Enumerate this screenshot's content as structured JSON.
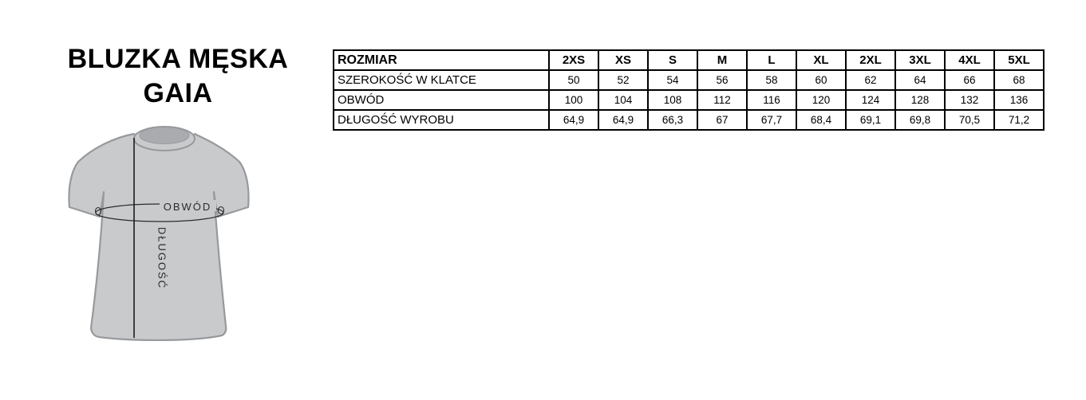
{
  "title": {
    "line1": "BLUZKA MĘSKA",
    "line2": "GAIA"
  },
  "diagram": {
    "labels": {
      "circumference": "OBWÓD",
      "length": "DŁUGOŚĆ"
    },
    "colors": {
      "shirt_fill": "#c9cacc",
      "shirt_outline": "#97999c",
      "collar_fill": "#a9abae",
      "line": "#1c1c1c",
      "measure": "#2b2b2b"
    }
  },
  "size_table": {
    "header_label": "ROZMIAR",
    "sizes": [
      "2XS",
      "XS",
      "S",
      "M",
      "L",
      "XL",
      "2XL",
      "3XL",
      "4XL",
      "5XL"
    ],
    "rows": [
      {
        "label": "SZEROKOŚĆ W KLATCE",
        "values": [
          "50",
          "52",
          "54",
          "56",
          "58",
          "60",
          "62",
          "64",
          "66",
          "68"
        ]
      },
      {
        "label": "OBWÓD",
        "values": [
          "100",
          "104",
          "108",
          "112",
          "116",
          "120",
          "124",
          "128",
          "132",
          "136"
        ]
      },
      {
        "label": "DŁUGOŚĆ WYROBU",
        "values": [
          "64,9",
          "64,9",
          "66,3",
          "67",
          "67,7",
          "68,4",
          "69,1",
          "69,8",
          "70,5",
          "71,2"
        ]
      }
    ]
  }
}
